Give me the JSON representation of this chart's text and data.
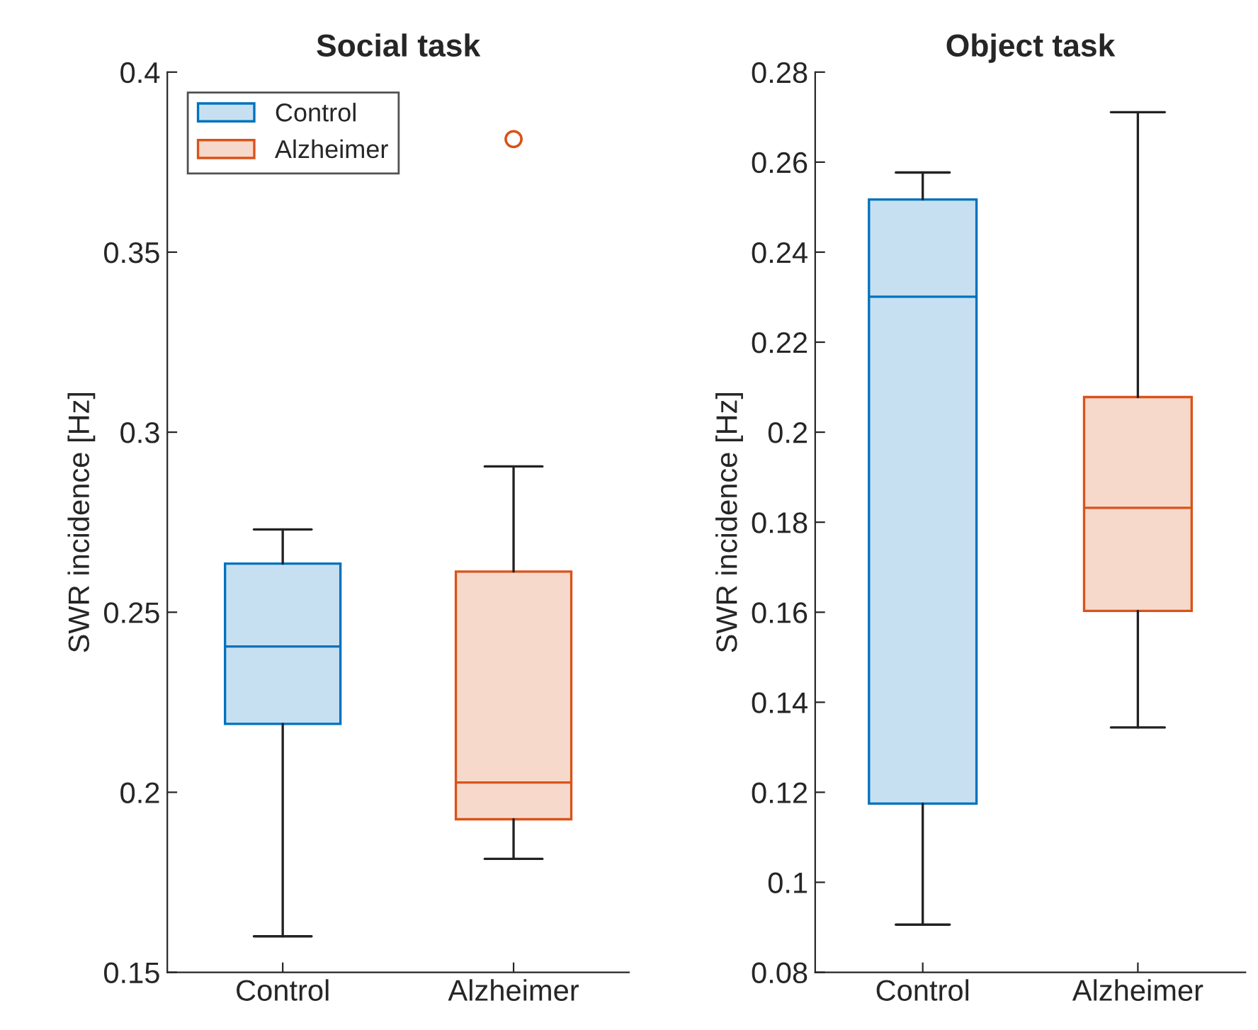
{
  "chart_data": [
    {
      "type": "box",
      "title": "Social task",
      "ylabel": "SWR incidence [Hz]",
      "categories": [
        "Control",
        "Alzheimer"
      ],
      "ylim": [
        0.15,
        0.4
      ],
      "yticks": [
        0.15,
        0.2,
        0.25,
        0.3,
        0.35,
        0.4
      ],
      "grid": false,
      "legend": "top left",
      "series": [
        {
          "name": "Control",
          "color": "#0072bd",
          "boxes": [
            {
              "low": 0.16,
              "q1": 0.219,
              "median": 0.2405,
              "q3": 0.2635,
              "high": 0.273
            },
            null
          ]
        },
        {
          "name": "Alzheimer",
          "color": "#d95319",
          "boxes": [
            null,
            {
              "low": 0.1815,
              "q1": 0.1925,
              "median": 0.2027,
              "q3": 0.2613,
              "high": 0.2905,
              "outliers": [
                0.3814
              ]
            }
          ]
        }
      ]
    },
    {
      "type": "box",
      "title": "Object task",
      "ylabel": "SWR incidence [Hz]",
      "categories": [
        "Control",
        "Alzheimer"
      ],
      "ylim": [
        0.08,
        0.28
      ],
      "yticks": [
        0.08,
        0.1,
        0.12,
        0.14,
        0.16,
        0.18,
        0.2,
        0.22,
        0.24,
        0.26,
        0.28
      ],
      "grid": false,
      "series": [
        {
          "color": "#0072bd",
          "boxes": [
            {
              "low": 0.0906,
              "q1": 0.1175,
              "median": 0.2301,
              "q3": 0.2517,
              "high": 0.2577
            },
            null
          ]
        },
        {
          "color": "#d95319",
          "boxes": [
            null,
            {
              "low": 0.1344,
              "q1": 0.1603,
              "median": 0.1832,
              "q3": 0.2078,
              "high": 0.2711
            }
          ]
        }
      ]
    }
  ]
}
